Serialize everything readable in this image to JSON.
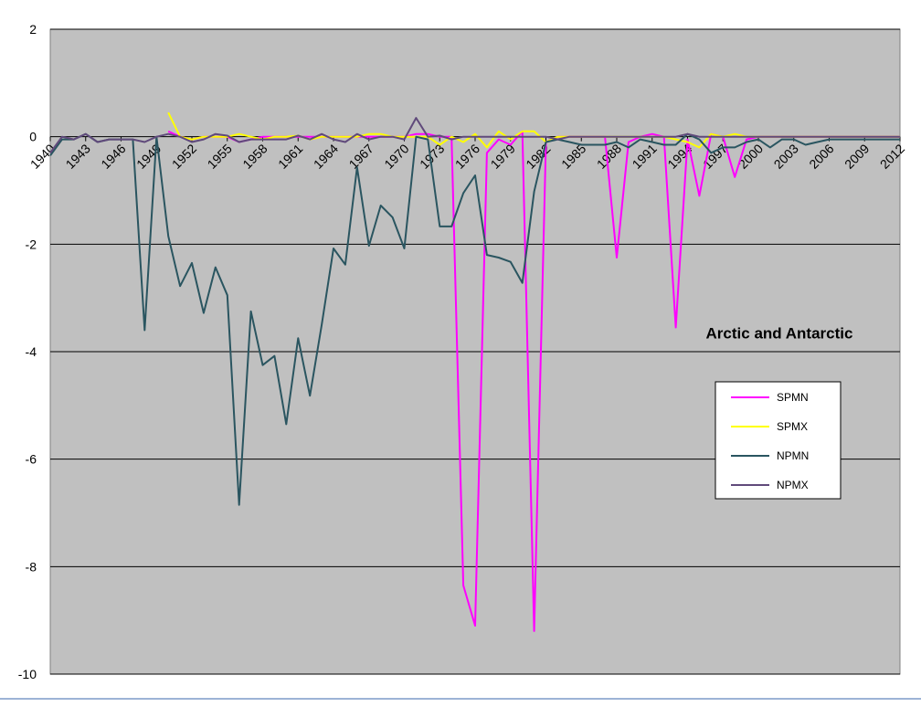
{
  "chart_data": {
    "type": "line",
    "title": "Arctic and Antarctic",
    "categories": [
      1940,
      null,
      null,
      1943,
      null,
      null,
      1946,
      null,
      null,
      1949,
      null,
      null,
      1952,
      null,
      null,
      1955,
      null,
      null,
      1958,
      null,
      null,
      1961,
      null,
      null,
      1964,
      null,
      null,
      1967,
      null,
      null,
      1970,
      null,
      null,
      1973,
      null,
      null,
      1976,
      null,
      null,
      1979,
      null,
      null,
      1982,
      null,
      null,
      1985,
      null,
      null,
      1988,
      null,
      null,
      1991,
      null,
      null,
      1994,
      null,
      null,
      1997,
      null,
      null,
      2000,
      null,
      null,
      2003,
      null,
      null,
      2006,
      null,
      null,
      2009,
      null,
      null,
      2012
    ],
    "series": [
      {
        "name": "SPMN",
        "color": "#ff00ff",
        "values": [
          null,
          null,
          null,
          null,
          null,
          null,
          null,
          null,
          null,
          null,
          0.1,
          0,
          -0.05,
          0,
          0,
          0,
          -0.1,
          -0.05,
          0,
          0,
          0,
          0,
          0,
          0,
          0,
          0,
          0,
          0,
          0,
          0,
          0,
          0.05,
          0.05,
          0,
          0,
          -8.35,
          -9.1,
          -0.3,
          -0.05,
          -0.15,
          0.1,
          -9.2,
          -0.1,
          0,
          0,
          0,
          0,
          0,
          -2.25,
          -0.1,
          0,
          0.05,
          0,
          -3.55,
          -0.05,
          -1.1,
          0.05,
          0,
          -0.75,
          -0.05,
          0,
          0,
          0,
          0,
          0,
          0,
          0,
          0,
          0,
          0,
          0,
          0,
          0
        ]
      },
      {
        "name": "SPMX",
        "color": "#ffff00",
        "values": [
          null,
          null,
          null,
          null,
          null,
          null,
          null,
          null,
          null,
          null,
          0.45,
          0,
          -0.05,
          0,
          0,
          0,
          0.05,
          0,
          -0.05,
          0,
          0,
          0.02,
          -0.05,
          0,
          0,
          0,
          0,
          0.05,
          0.05,
          0,
          0,
          0,
          0,
          -0.15,
          0,
          -0.1,
          0.05,
          -0.2,
          0.1,
          -0.05,
          0.1,
          0.1,
          -0.1,
          0,
          0,
          0,
          0,
          0,
          0,
          0,
          0,
          0,
          0,
          -0.05,
          -0.1,
          -0.2,
          0.05,
          0,
          0.05,
          0,
          0,
          0,
          0,
          0,
          0,
          0,
          0,
          0,
          0,
          0,
          0,
          0,
          0
        ]
      },
      {
        "name": "NPMN",
        "color": "#2a5560",
        "values": [
          -0.35,
          -0.05,
          -0.05,
          0.05,
          -0.1,
          -0.05,
          -0.05,
          -0.05,
          -3.6,
          0,
          -1.85,
          -2.78,
          -2.35,
          -3.28,
          -2.43,
          -2.95,
          -6.85,
          -3.25,
          -4.25,
          -4.08,
          -5.35,
          -3.75,
          -4.82,
          -3.5,
          -2.08,
          -2.38,
          -0.57,
          -2.03,
          -1.28,
          -1.5,
          -2.08,
          0,
          -0.05,
          -1.67,
          -1.67,
          -1.05,
          -0.72,
          -2.2,
          -2.25,
          -2.33,
          -2.72,
          -1.02,
          -0.1,
          -0.05,
          -0.1,
          -0.15,
          -0.15,
          -0.15,
          -0.1,
          -0.2,
          -0.05,
          -0.1,
          -0.15,
          -0.15,
          0.05,
          -0.05,
          -0.3,
          -0.2,
          -0.2,
          -0.1,
          -0.05,
          -0.2,
          -0.05,
          -0.05,
          -0.15,
          -0.1,
          -0.05,
          -0.05,
          -0.05,
          -0.05,
          -0.05,
          -0.05,
          -0.05
        ]
      },
      {
        "name": "NPMX",
        "color": "#604a7b",
        "values": [
          -0.3,
          0,
          -0.05,
          0.05,
          -0.1,
          -0.05,
          -0.05,
          -0.05,
          -0.1,
          0,
          0.05,
          0,
          -0.1,
          -0.05,
          0.05,
          0.02,
          -0.1,
          -0.05,
          -0.05,
          -0.05,
          -0.05,
          0.02,
          -0.05,
          0.05,
          -0.05,
          -0.1,
          0.05,
          -0.05,
          0,
          0,
          -0.05,
          0.35,
          0,
          0.02,
          -0.05,
          0,
          0,
          0,
          0,
          0,
          0,
          0,
          0,
          -0.05,
          0,
          0,
          0,
          0,
          0,
          0,
          0,
          0,
          0,
          0,
          0.05,
          0,
          0,
          0,
          0,
          0,
          0,
          0,
          0,
          0,
          0,
          0,
          0,
          0,
          0,
          0,
          0,
          0,
          0
        ]
      }
    ],
    "ylim": [
      -10,
      2
    ],
    "yticks": [
      -10,
      -8,
      -6,
      -4,
      -2,
      0,
      2
    ],
    "grid": true
  }
}
